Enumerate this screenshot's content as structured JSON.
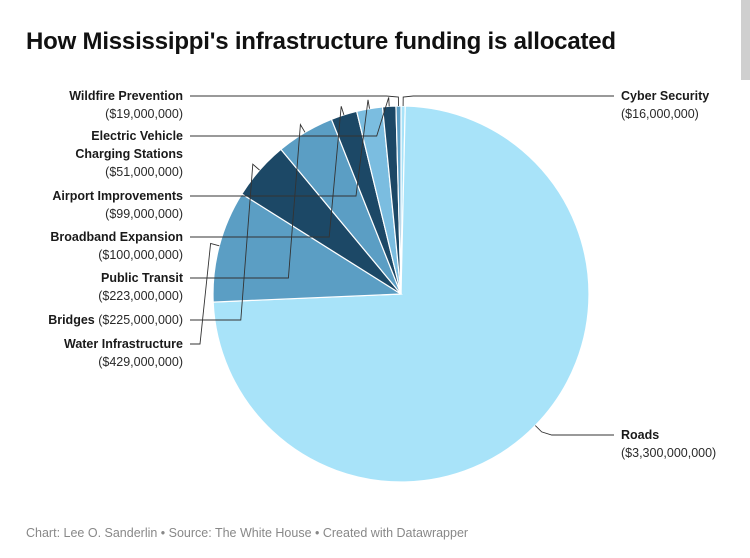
{
  "title": "How Mississippi's infrastructure funding is allocated",
  "footer": "Chart: Lee O. Sanderlin • Source: The White House • Created with Datawrapper",
  "chart_data": {
    "type": "pie",
    "title": "How Mississippi's infrastructure funding is allocated",
    "start": "12 o'clock, clockwise",
    "slices": [
      {
        "name": "Cyber Security",
        "value_label": "($16,000,000)",
        "value": 16000000,
        "color": "#a8e3f9"
      },
      {
        "name": "Roads",
        "value_label": "($3,300,000,000)",
        "value": 3300000000,
        "color": "#a8e3f9"
      },
      {
        "name": "Water Infrastructure",
        "value_label": "($429,000,000)",
        "value": 429000000,
        "color": "#5b9ec4"
      },
      {
        "name": "Bridges",
        "value_label": "($225,000,000)",
        "value": 225000000,
        "color": "#1c4866"
      },
      {
        "name": "Public Transit",
        "value_label": "($223,000,000)",
        "value": 223000000,
        "color": "#5b9ec4"
      },
      {
        "name": "Broadband Expansion",
        "value_label": "($100,000,000)",
        "value": 100000000,
        "color": "#1c4866"
      },
      {
        "name": "Airport Improvements",
        "value_label": "($99,000,000)",
        "value": 99000000,
        "color": "#7bbde0"
      },
      {
        "name": "Electric Vehicle Charging Stations",
        "value_label": "($51,000,000)",
        "value": 51000000,
        "color": "#1c4866"
      },
      {
        "name": "Wildfire Prevention",
        "value_label": "($19,000,000)",
        "value": 19000000,
        "color": "#5b9ec4"
      }
    ]
  }
}
